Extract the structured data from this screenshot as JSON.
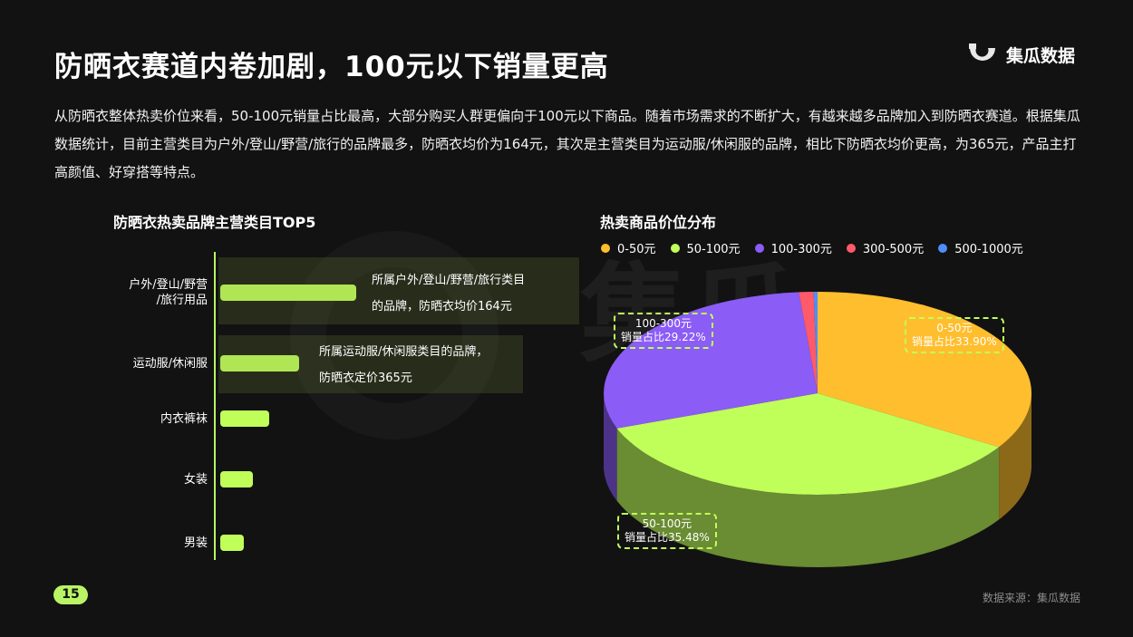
{
  "title": "防晒衣赛道内卷加剧，100元以下销量更高",
  "logo": "集瓜数据",
  "intro": "从防晒衣整体热卖价位来看，50-100元销量占比最高，大部分购买人群更偏向于100元以下商品。随着市场需求的不断扩大，有越来越多品牌加入到防晒衣赛道。根据集瓜数据统计，目前主营类目为户外/登山/野营/旅行的品牌最多，防晒衣均价为164元，其次是主营类目为运动服/休闲服的品牌，相比下防晒衣均价更高，为365元，产品主打高颜值、好穿搭等特点。",
  "watermark": "集瓜",
  "page_number": "15",
  "source": "数据来源：集瓜数据",
  "colors": {
    "accent": "#c0ff5a",
    "background": "#121212"
  },
  "annotations": {
    "a1_line1": "所属户外/登山/野营/旅行类目",
    "a1_line2": "的品牌，防晒衣均价164元",
    "a2_line1": "所属运动服/休闲服类目的品牌，",
    "a2_line2": "防晒衣定价365元"
  },
  "chart_data": [
    {
      "type": "bar",
      "orientation": "horizontal",
      "title": "防晒衣热卖品牌主营类目TOP5",
      "categories": [
        "户外/登山/野营\n/旅行用品",
        "运动服/休闲服",
        "内衣裤袜",
        "女装",
        "男装"
      ],
      "values": [
        100,
        58,
        36,
        24,
        17
      ],
      "grid": false
    },
    {
      "type": "pie",
      "title": "热卖商品价位分布",
      "legend_position": "top",
      "slices": [
        {
          "label": "0-50元",
          "value": 33.9,
          "color": "#ffbe2e",
          "data_label_l1": "0-50元",
          "data_label_l2": "销量占比33.90%"
        },
        {
          "label": "50-100元",
          "value": 35.48,
          "color": "#c0ff5a",
          "data_label_l1": "50-100元",
          "data_label_l2": "销量占比35.48%"
        },
        {
          "label": "100-300元",
          "value": 29.22,
          "color": "#8b5cf6",
          "data_label_l1": "100-300元",
          "data_label_l2": "销量占比29.22%"
        },
        {
          "label": "300-500元",
          "value": 1.1,
          "color": "#ff5a6a"
        },
        {
          "label": "500-1000元",
          "value": 0.3,
          "color": "#4f8ef7"
        }
      ]
    }
  ]
}
